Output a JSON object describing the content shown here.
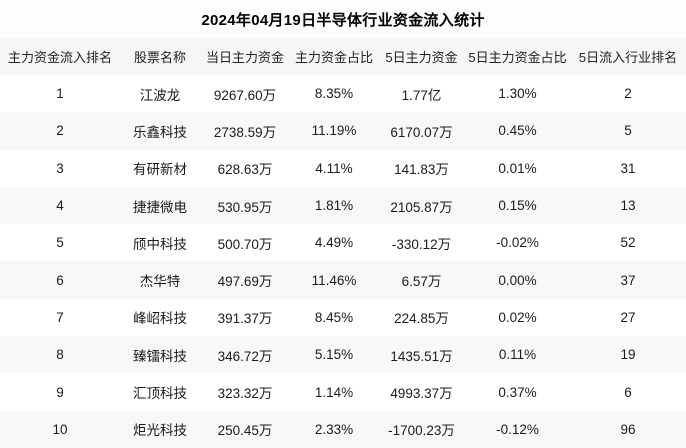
{
  "title": "2024年04月19日半导体行业资金流入统计",
  "chart_data": {
    "type": "table",
    "title": "2024年04月19日半导体行业资金流入统计",
    "columns": [
      "主力资金流入排名",
      "股票名称",
      "当日主力资金",
      "主力资金占比",
      "5日主力资金",
      "5日主力资金占比",
      "5日流入行业排名"
    ],
    "rows": [
      [
        "1",
        "江波龙",
        "9267.60万",
        "8.35%",
        "1.77亿",
        "1.30%",
        "2"
      ],
      [
        "2",
        "乐鑫科技",
        "2738.59万",
        "11.19%",
        "6170.07万",
        "0.45%",
        "5"
      ],
      [
        "3",
        "有研新材",
        "628.63万",
        "4.11%",
        "141.83万",
        "0.01%",
        "31"
      ],
      [
        "4",
        "捷捷微电",
        "530.95万",
        "1.81%",
        "2105.87万",
        "0.15%",
        "13"
      ],
      [
        "5",
        "颀中科技",
        "500.70万",
        "4.49%",
        "-330.12万",
        "-0.02%",
        "52"
      ],
      [
        "6",
        "杰华特",
        "497.69万",
        "11.46%",
        "6.57万",
        "0.00%",
        "37"
      ],
      [
        "7",
        "峰岹科技",
        "391.37万",
        "8.45%",
        "224.85万",
        "0.02%",
        "27"
      ],
      [
        "8",
        "臻镭科技",
        "346.72万",
        "5.15%",
        "1435.51万",
        "0.11%",
        "19"
      ],
      [
        "9",
        "汇顶科技",
        "323.32万",
        "1.14%",
        "4993.37万",
        "0.37%",
        "6"
      ],
      [
        "10",
        "炬光科技",
        "250.45万",
        "2.33%",
        "-1700.23万",
        "-0.12%",
        "96"
      ]
    ]
  },
  "colors": {
    "header_bg": "#f5f6f8",
    "row_bg": "#ffffff",
    "row_alt_bg": "#f7f8fa",
    "text": "#1b1b1b"
  }
}
